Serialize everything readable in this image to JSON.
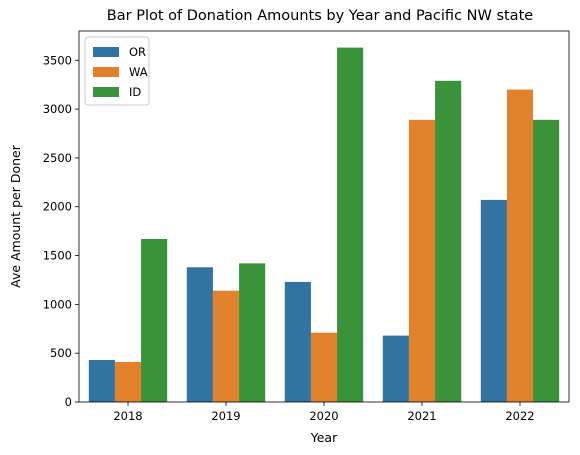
{
  "chart_data": {
    "type": "bar",
    "title": "Bar Plot of Donation Amounts by Year and Pacific NW state",
    "xlabel": "Year",
    "ylabel": "Ave Amount per Doner",
    "categories": [
      "2018",
      "2019",
      "2020",
      "2021",
      "2022"
    ],
    "series": [
      {
        "name": "OR",
        "color": "#3274a1",
        "values": [
          430,
          1380,
          1230,
          680,
          2070
        ]
      },
      {
        "name": "WA",
        "color": "#e1812c",
        "values": [
          410,
          1140,
          710,
          2890,
          3200
        ]
      },
      {
        "name": "ID",
        "color": "#3a923a",
        "values": [
          1670,
          1420,
          3630,
          3290,
          2890
        ]
      }
    ],
    "ylim": [
      0,
      3800
    ],
    "yticks": [
      0,
      500,
      1000,
      1500,
      2000,
      2500,
      3000,
      3500
    ],
    "grid": false,
    "legend_position": "top-left"
  }
}
